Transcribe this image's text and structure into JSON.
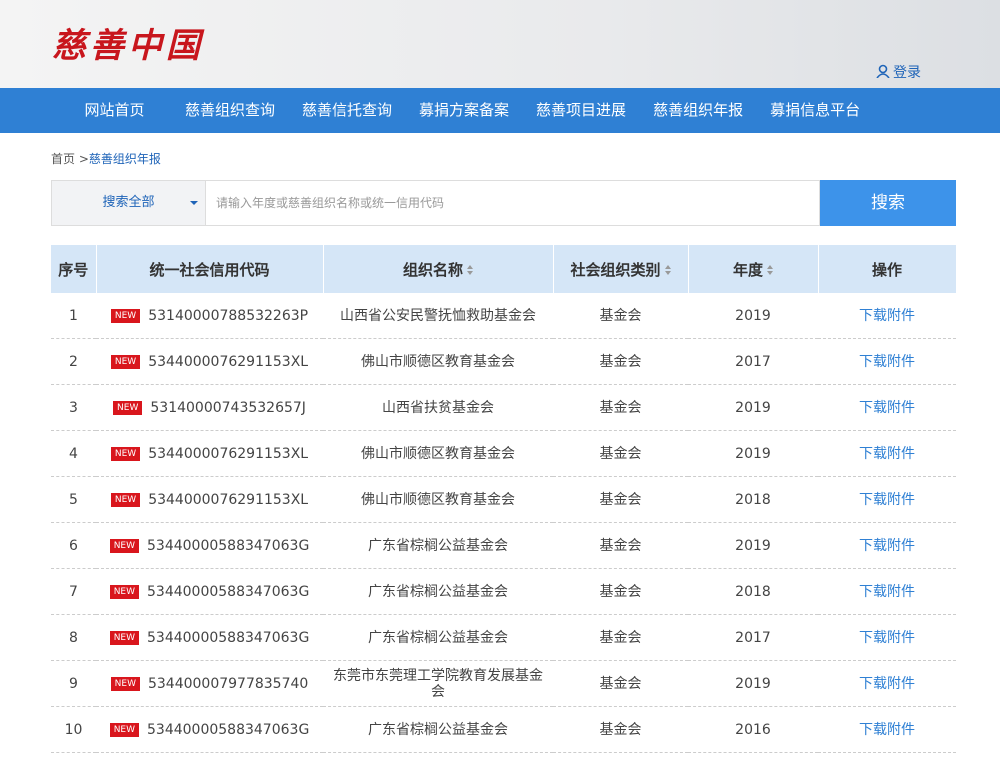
{
  "header": {
    "logo": "慈善中国",
    "login": "登录"
  },
  "nav": [
    "网站首页",
    "慈善组织查询",
    "慈善信托查询",
    "募捐方案备案",
    "慈善项目进展",
    "慈善组织年报",
    "募捐信息平台"
  ],
  "breadcrumb": {
    "home": "首页",
    "separator": ">",
    "current": "慈善组织年报"
  },
  "search": {
    "scope": "搜索全部",
    "placeholder": "请输入年度或慈善组织名称或统一信用代码",
    "button": "搜索"
  },
  "table": {
    "headers": [
      "序号",
      "统一社会信用代码",
      "组织名称",
      "社会组织类别",
      "年度",
      "操作"
    ],
    "sortable_columns": [
      2,
      3,
      4
    ],
    "rows": [
      {
        "no": 1,
        "badge": "NEW",
        "code": "53140000788532263P",
        "name": "山西省公安民警抚恤救助基金会",
        "category": "基金会",
        "year": 2019,
        "action": "下载附件"
      },
      {
        "no": 2,
        "badge": "NEW",
        "code": "5344000076291153XL",
        "name": "佛山市顺德区教育基金会",
        "category": "基金会",
        "year": 2017,
        "action": "下载附件"
      },
      {
        "no": 3,
        "badge": "NEW",
        "code": "53140000743532657J",
        "name": "山西省扶贫基金会",
        "category": "基金会",
        "year": 2019,
        "action": "下载附件"
      },
      {
        "no": 4,
        "badge": "NEW",
        "code": "5344000076291153XL",
        "name": "佛山市顺德区教育基金会",
        "category": "基金会",
        "year": 2019,
        "action": "下载附件"
      },
      {
        "no": 5,
        "badge": "NEW",
        "code": "5344000076291153XL",
        "name": "佛山市顺德区教育基金会",
        "category": "基金会",
        "year": 2018,
        "action": "下载附件"
      },
      {
        "no": 6,
        "badge": "NEW",
        "code": "53440000588347063G",
        "name": "广东省棕榈公益基金会",
        "category": "基金会",
        "year": 2019,
        "action": "下载附件"
      },
      {
        "no": 7,
        "badge": "NEW",
        "code": "53440000588347063G",
        "name": "广东省棕榈公益基金会",
        "category": "基金会",
        "year": 2018,
        "action": "下载附件"
      },
      {
        "no": 8,
        "badge": "NEW",
        "code": "53440000588347063G",
        "name": "广东省棕榈公益基金会",
        "category": "基金会",
        "year": 2017,
        "action": "下载附件"
      },
      {
        "no": 9,
        "badge": "NEW",
        "code": "534400007977835740",
        "name": "东莞市东莞理工学院教育发展基金会",
        "category": "基金会",
        "year": 2019,
        "action": "下载附件"
      },
      {
        "no": 10,
        "badge": "NEW",
        "code": "53440000588347063G",
        "name": "广东省棕榈公益基金会",
        "category": "基金会",
        "year": 2016,
        "action": "下载附件"
      }
    ]
  }
}
